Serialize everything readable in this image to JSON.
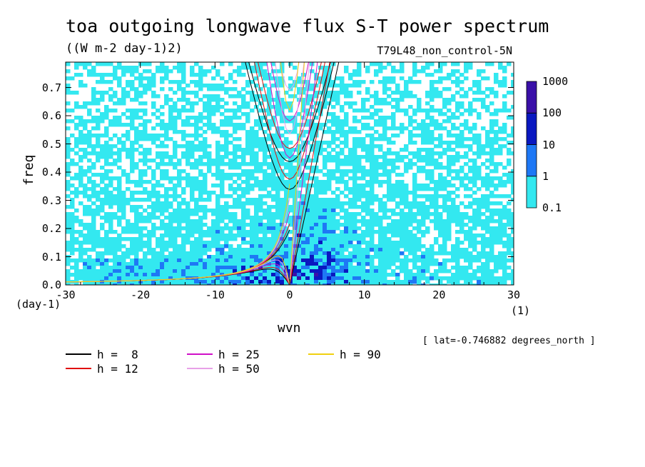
{
  "chart_data": {
    "type": "contour",
    "title": "toa outgoing longwave flux S-T power spectrum",
    "units": "((W m-2 day-1)2)",
    "dataset": "T79L48_non_control-5N",
    "xlabel": "wvn",
    "x_unit_label": "(1)",
    "ylabel": "freq",
    "y_unit_label": "(day-1)",
    "xlim": [
      -30,
      30
    ],
    "ylim": [
      0,
      0.79
    ],
    "x_ticks": [
      -30,
      -20,
      -10,
      0,
      10,
      20,
      30
    ],
    "x_tick_labels": [
      "-30",
      "-20",
      "-10",
      "0",
      "10",
      "20",
      "30"
    ],
    "y_ticks": [
      0.0,
      0.1,
      0.2,
      0.3,
      0.4,
      0.5,
      0.6,
      0.7
    ],
    "y_tick_labels": [
      "0.0",
      "0.1",
      "0.2",
      "0.3",
      "0.4",
      "0.5",
      "0.6",
      "0.7"
    ],
    "note": "[ lat=-0.746882 degrees_north ]",
    "colorbar": {
      "levels": [
        "0.1",
        "1",
        "10",
        "100",
        "1000"
      ],
      "colors": [
        "#33e8f0",
        "#1e78f5",
        "#0a18c0",
        "#3a10a8"
      ]
    },
    "dispersion_curves": [
      {
        "label": "h =  8",
        "h": 8,
        "color": "#000000"
      },
      {
        "label": "h = 12",
        "h": 12,
        "color": "#e01010"
      },
      {
        "label": "h = 25",
        "h": 25,
        "color": "#d010c8"
      },
      {
        "label": "h = 50",
        "h": 50,
        "color": "#e8a0e8"
      },
      {
        "label": "h = 90",
        "h": 90,
        "color": "#f0d010"
      }
    ]
  }
}
